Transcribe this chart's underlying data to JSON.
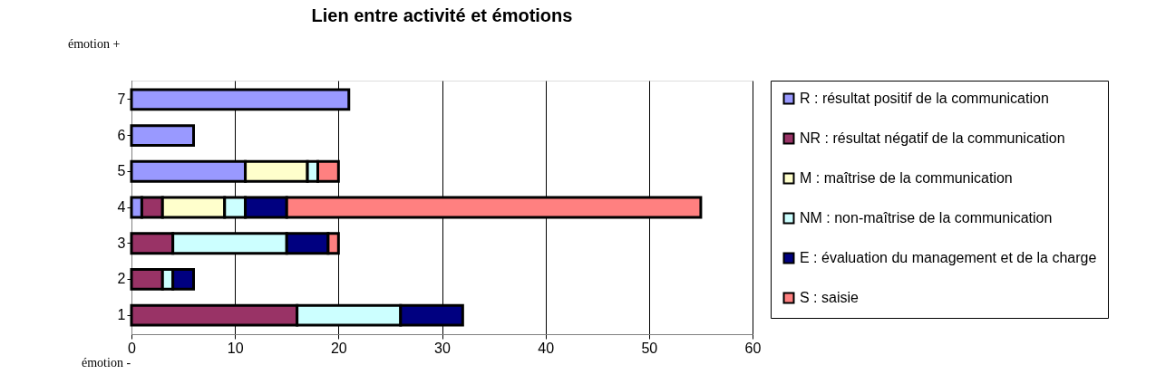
{
  "chart_data": {
    "type": "bar",
    "orientation": "horizontal",
    "stacked": true,
    "title": "Lien entre activité et émotions",
    "categories": [
      "7",
      "6",
      "5",
      "4",
      "3",
      "2",
      "1"
    ],
    "series": [
      {
        "name": "R : résultat positif de la communication",
        "color": "#9999ff",
        "values": [
          21,
          6,
          11,
          1,
          null,
          null,
          null
        ]
      },
      {
        "name": "NR : résultat négatif de la communication",
        "color": "#993366",
        "values": [
          null,
          null,
          null,
          2,
          4,
          3,
          16
        ]
      },
      {
        "name": "M : maîtrise de la communication",
        "color": "#ffffcc",
        "values": [
          null,
          null,
          6,
          6,
          null,
          null,
          null
        ]
      },
      {
        "name": "NM : non-maîtrise de la communication",
        "color": "#ccffff",
        "values": [
          null,
          null,
          1,
          2,
          11,
          1,
          10
        ]
      },
      {
        "name": "E : évaluation du management et de la charge",
        "color": "#000080",
        "values": [
          null,
          null,
          null,
          4,
          4,
          2,
          6
        ]
      },
      {
        "name": "S : saisie",
        "color": "#ff8080",
        "values": [
          null,
          null,
          2,
          40,
          1,
          null,
          null
        ]
      }
    ],
    "xlim": [
      0,
      60
    ],
    "xticks": [
      0,
      10,
      20,
      30,
      40,
      50,
      60
    ],
    "grid": "x",
    "legend": "right",
    "annotations": [
      "émotion +",
      "émotion -"
    ]
  }
}
